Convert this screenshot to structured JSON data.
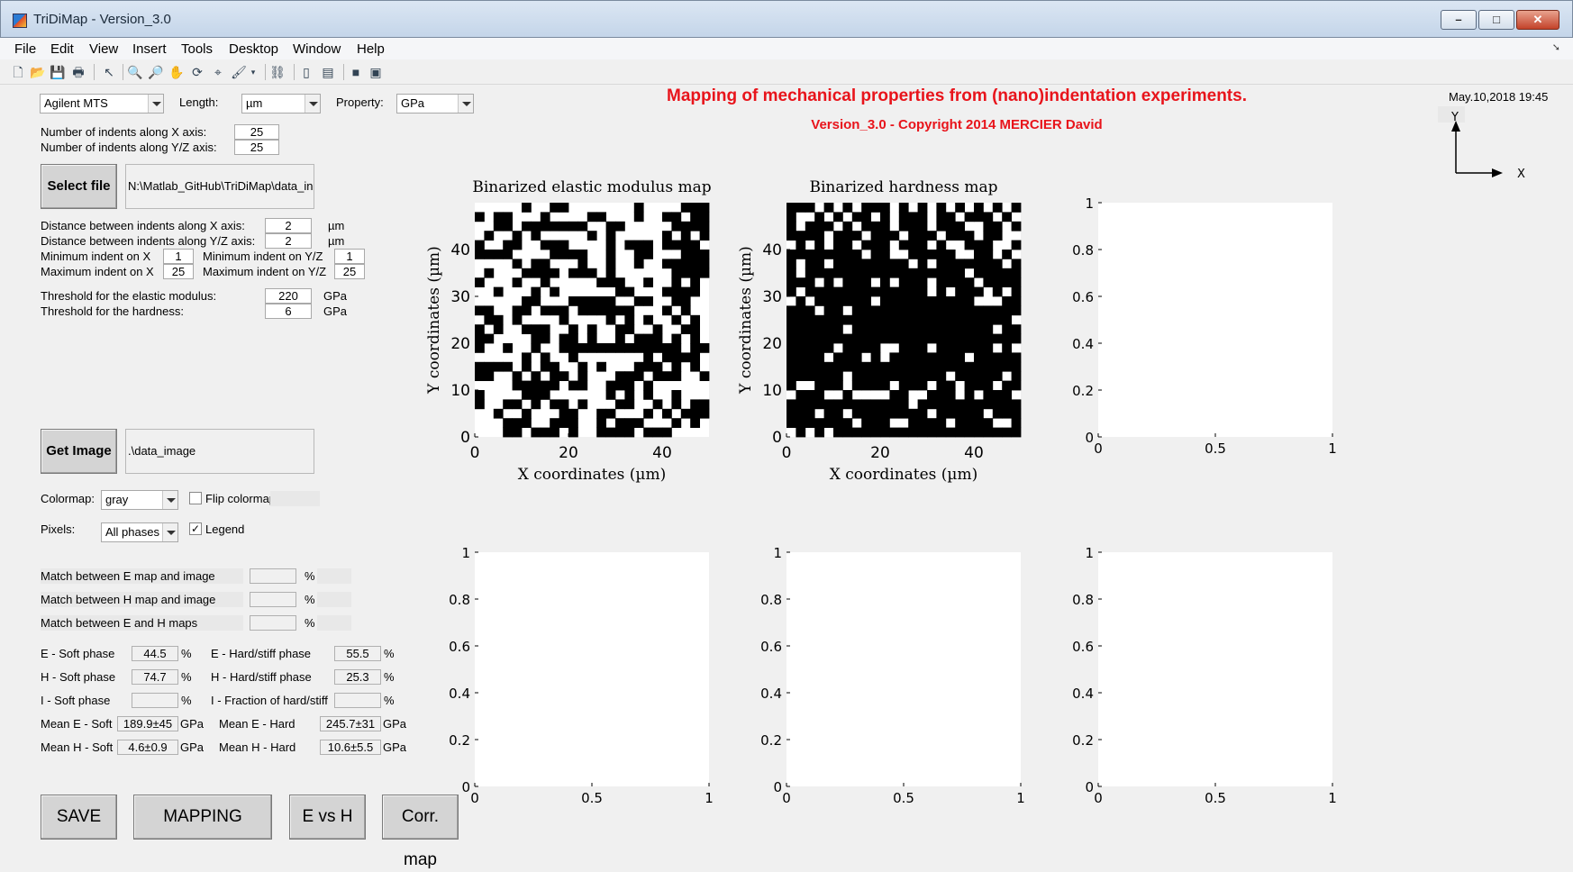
{
  "window": {
    "title": "TriDiMap - Version_3.0"
  },
  "menu": [
    "File",
    "Edit",
    "View",
    "Insert",
    "Tools",
    "Desktop",
    "Window",
    "Help"
  ],
  "toolbar_icons": [
    "new-file-icon",
    "open-folder-icon",
    "save-icon",
    "print-icon",
    "pointer-icon",
    "zoom-in-icon",
    "zoom-out-icon",
    "pan-icon",
    "rotate-icon",
    "data-cursor-icon",
    "brush-icon",
    "link-icon",
    "colorbar-icon",
    "legend-icon",
    "hide-icon",
    "show-icon"
  ],
  "controls": {
    "instrument": "Agilent MTS",
    "length_label": "Length:",
    "length_unit": "µm",
    "property_label": "Property:",
    "property_unit": "GPa",
    "nx_label": "Number of indents along X axis:",
    "nx": "25",
    "ny_label": "Number of indents along Y/Z axis:",
    "ny": "25",
    "select_file_button": "Select file",
    "file_path": "N:\\Matlab_GitHub\\TriDiMap\\data_in",
    "dx_label": "Distance between indents along X axis:",
    "dx": "2",
    "dx_unit": "µm",
    "dy_label": "Distance between indents along Y/Z axis:",
    "dy": "2",
    "dy_unit": "µm",
    "minx_label": "Minimum indent on X",
    "minx": "1",
    "miny_label": "Minimum indent on Y/Z",
    "miny": "1",
    "maxx_label": "Maximum indent on X",
    "maxx": "25",
    "maxy_label": "Maximum indent on Y/Z",
    "maxy": "25",
    "thr_e_label": "Threshold for the elastic modulus:",
    "thr_e": "220",
    "thr_e_unit": "GPa",
    "thr_h_label": "Threshold for the hardness:",
    "thr_h": "6",
    "thr_h_unit": "GPa",
    "get_image_button": "Get Image",
    "image_path": ".\\data_image",
    "colormap_label": "Colormap:",
    "colormap": "gray",
    "flip_label": "Flip colormap",
    "pixels_label": "Pixels:",
    "pixels": "All phases",
    "legend_label": "Legend",
    "legend_checked": "✓",
    "match_eimg_label": "Match between E map and image",
    "match_himg_label": "Match between H map and image",
    "match_eh_label": "Match between E and H maps",
    "pct": "%",
    "e_soft_label": "E - Soft phase",
    "e_soft": "44.5",
    "e_hard_label": "E - Hard/stiff phase",
    "e_hard": "55.5",
    "h_soft_label": "H - Soft phase",
    "h_soft": "74.7",
    "h_hard_label": "H - Hard/stiff phase",
    "h_hard": "25.3",
    "i_soft_label": "I - Soft phase",
    "i_frac_label": "I - Fraction of hard/stiff",
    "mean_e_soft_label": "Mean E - Soft",
    "mean_e_soft": "189.9±45",
    "mean_e_hard_label": "Mean E - Hard",
    "mean_e_hard": "245.7±31",
    "mean_h_soft_label": "Mean H - Soft",
    "mean_h_soft": "4.6±0.9",
    "mean_h_hard_label": "Mean H - Hard",
    "mean_h_hard": "10.6±5.5",
    "gpa": "GPa",
    "save_button": "SAVE",
    "mapping_button": "MAPPING",
    "evsh_button": "E vs H",
    "corrmap_button": "Corr. map"
  },
  "header": {
    "title": "Mapping of mechanical properties from (nano)indentation experiments.",
    "subtitle": "Version_3.0 - Copyright 2014 MERCIER David",
    "date": "May.10,2018 19:45",
    "axis_y": "Y",
    "axis_x": "X"
  },
  "chart_data": [
    {
      "type": "heatmap",
      "title": "Binarized elastic modulus map",
      "xlabel": "X coordinates (µm)",
      "ylabel": "Y coordinates (µm)",
      "x_ticks": [
        "0",
        "20",
        "40"
      ],
      "y_ticks": [
        "0",
        "10",
        "20",
        "30",
        "40"
      ],
      "xlim": [
        0,
        50
      ],
      "ylim": [
        0,
        50
      ],
      "colormap": "gray",
      "grid_size": [
        25,
        25
      ],
      "rows_top_to_bottom": [
        "1111101100111111101111000",
        "0100111011110011101100100",
        "1100100000001100111110000",
        "1011010111110101111101010",
        "0110011000111101000100001",
        "0000111100001101100111000",
        "1111010011101101101100000",
        "1011100001000101111110000",
        "0111011011111000110110101",
        "1101110101111110011100001",
        "1111100111000001100110011",
        "0011001000100000011101011",
        "1001011110111101010110101",
        "0101100011010110011011001",
        "0011110010010110100010101",
        "0110110110000000000000100",
        "1111101011011111110100001",
        "0000101001101011100010101",
        "0011010100101110001000110",
        "1111000001001100010111111",
        "0111100011111101010110111",
        "0110010100101110011010100",
        "1101101110011001110101000",
        "1110001100011010001110101",
        "1110010001011000010001111"
      ]
    },
    {
      "type": "heatmap",
      "title": "Binarized hardness map",
      "xlabel": "X coordinates (µm)",
      "ylabel": "Y coordinates (µm)",
      "x_ticks": [
        "0",
        "20",
        "40"
      ],
      "y_ticks": [
        "0",
        "10",
        "20",
        "30",
        "40"
      ],
      "xlim": [
        0,
        50
      ],
      "ylim": [
        0,
        50
      ],
      "colormap": "gray",
      "grid_size": [
        25,
        25
      ],
      "rows_top_to_bottom": [
        "0001010100010101010101010",
        "0110101001010001001000101",
        "0100010100010001000110010",
        "0000100010001000100010011",
        "1010100100010001011000110",
        "0000000010011000001100101",
        "0100100000000101000000010",
        "0100000000000000000100000",
        "0001010001010001000010000",
        "0100000000000001010001010",
        "1010000001000000000011100",
        "0001001000000000000000000",
        "0000000000000000000000001",
        "0000001000000000000000100",
        "0000000000000000000000000",
        "0000010000110001000000101",
        "0000100010100000000100000",
        "0000000000000000000000000",
        "0000001000000000010000010",
        "0110001000010001001000100",
        "1000110111100110001010001",
        "0000000000000100000000000",
        "0001001000000001000001000",
        "0000000100011000010000110",
        "1010100000000000000000000"
      ]
    },
    {
      "type": "scatter",
      "title": "",
      "xlabel": "",
      "ylabel": "",
      "x_ticks": [
        "0",
        "0.5",
        "1"
      ],
      "y_ticks": [
        "0",
        "0.2",
        "0.4",
        "0.6",
        "0.8",
        "1"
      ],
      "xlim": [
        0,
        1
      ],
      "ylim": [
        0,
        1
      ],
      "series": []
    },
    {
      "type": "scatter",
      "title": "",
      "xlabel": "",
      "ylabel": "",
      "x_ticks": [
        "0",
        "0.5",
        "1"
      ],
      "y_ticks": [
        "0",
        "0.2",
        "0.4",
        "0.6",
        "0.8",
        "1"
      ],
      "xlim": [
        0,
        1
      ],
      "ylim": [
        0,
        1
      ],
      "series": []
    },
    {
      "type": "scatter",
      "title": "",
      "xlabel": "",
      "ylabel": "",
      "x_ticks": [
        "0",
        "0.5",
        "1"
      ],
      "y_ticks": [
        "0",
        "0.2",
        "0.4",
        "0.6",
        "0.8",
        "1"
      ],
      "xlim": [
        0,
        1
      ],
      "ylim": [
        0,
        1
      ],
      "series": []
    },
    {
      "type": "scatter",
      "title": "",
      "xlabel": "",
      "ylabel": "",
      "x_ticks": [
        "0",
        "0.5",
        "1"
      ],
      "y_ticks": [
        "0",
        "0.2",
        "0.4",
        "0.6",
        "0.8",
        "1"
      ],
      "xlim": [
        0,
        1
      ],
      "ylim": [
        0,
        1
      ],
      "series": []
    }
  ]
}
